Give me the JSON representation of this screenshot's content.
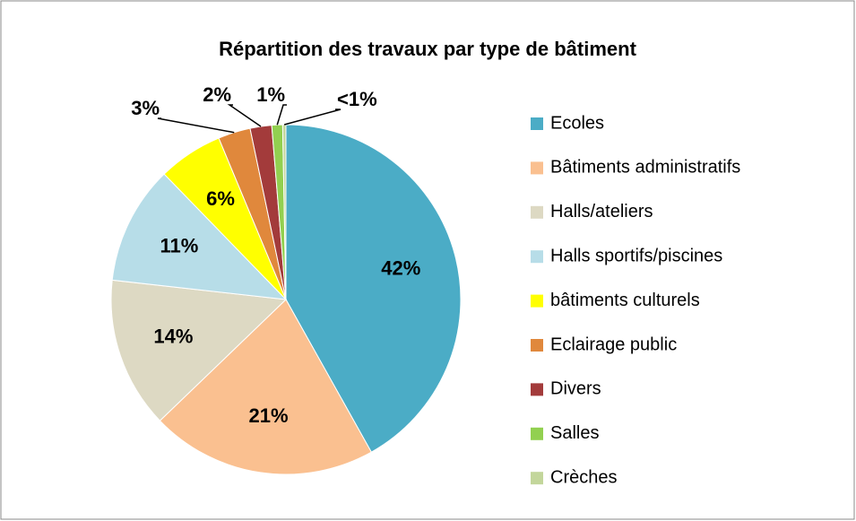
{
  "chart_data": {
    "type": "pie",
    "title": "Répartition des travaux par type de bâtiment",
    "categories": [
      "Ecoles",
      "Bâtiments administratifs",
      "Halls/ateliers",
      "Halls sportifs/piscines",
      "bâtiments culturels",
      "Eclairage public",
      "Divers",
      "Salles",
      "Crèches"
    ],
    "values": [
      42,
      21,
      14,
      11,
      6,
      3,
      2,
      1,
      0.3
    ],
    "value_labels": [
      "42%",
      "21%",
      "14%",
      "11%",
      "6%",
      "3%",
      "2%",
      "1%",
      "<1%"
    ],
    "colors": [
      "#4bacc6",
      "#fac090",
      "#ddd9c3",
      "#b7dde8",
      "#ffff00",
      "#e0883c",
      "#a33b3b",
      "#92d050",
      "#c3d69b"
    ],
    "legend": "right"
  }
}
